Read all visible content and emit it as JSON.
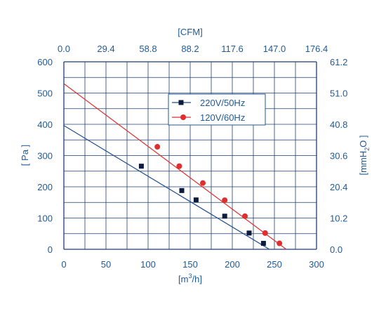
{
  "chart_data": {
    "type": "line",
    "x_bottom_label_pre": "[m",
    "x_bottom_label_sup": "3",
    "x_bottom_label_post": "/h]",
    "x_top_label": "[CFM]",
    "y_left_label": "[ Pa ]",
    "y_right_label_pre": "[mmH",
    "y_right_label_sub": "2",
    "y_right_label_post": "O ]",
    "xlim": [
      0,
      300
    ],
    "ylim": [
      0,
      600
    ],
    "x_ticks": [
      "0",
      "50",
      "100",
      "150",
      "200",
      "250",
      "300"
    ],
    "x_top_ticks": [
      "0.0",
      "29.4",
      "58.8",
      "88.2",
      "117.6",
      "147.0",
      "176.4"
    ],
    "y_ticks": [
      "0",
      "100",
      "200",
      "300",
      "400",
      "500",
      "600"
    ],
    "y_right_ticks": [
      "0.0",
      "10.2",
      "20.4",
      "30.6",
      "40.8",
      "51.0",
      "61.2"
    ],
    "grid": true,
    "legend_position": "upper-center-right",
    "series": [
      {
        "name": "220V/50Hz",
        "color": "#1f4e8c",
        "marker": "square",
        "marker_color": "#0d1b3e",
        "line": [
          [
            0,
            396
          ],
          [
            244,
            0
          ]
        ],
        "points": [
          [
            92,
            266
          ],
          [
            140,
            188
          ],
          [
            157,
            158
          ],
          [
            191,
            106
          ],
          [
            220,
            52
          ],
          [
            237,
            19
          ]
        ]
      },
      {
        "name": "120V/60Hz",
        "color": "#e02d2d",
        "marker": "circle",
        "marker_color": "#e02d2d",
        "line": [
          [
            0,
            530
          ],
          [
            264,
            0
          ]
        ],
        "points": [
          [
            111,
            328
          ],
          [
            137,
            266
          ],
          [
            165,
            212
          ],
          [
            191,
            157
          ],
          [
            215,
            106
          ],
          [
            239,
            52
          ],
          [
            256,
            19
          ]
        ]
      }
    ]
  }
}
